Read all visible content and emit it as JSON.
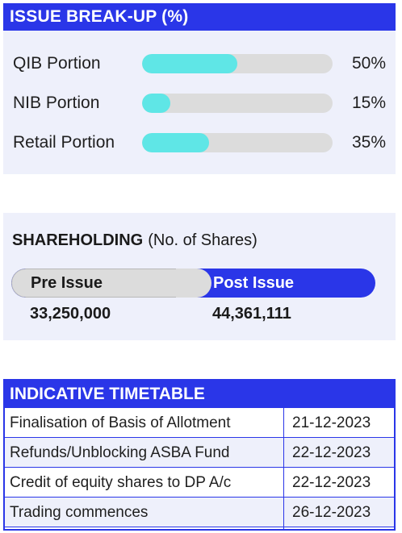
{
  "issue_breakup": {
    "title": "ISSUE BREAK-UP (%)",
    "rows": [
      {
        "label": "QIB Portion",
        "percent_text": "50%",
        "value": 50
      },
      {
        "label": "NIB Portion",
        "percent_text": "15%",
        "value": 15
      },
      {
        "label": "Retail Portion",
        "percent_text": "35%",
        "value": 35
      }
    ],
    "colors": {
      "header": "#2a36e8",
      "fill": "#5fe6e6",
      "track": "#dcdcdc"
    }
  },
  "shareholding": {
    "title": "SHAREHOLDING",
    "subtitle": "(No. of Shares)",
    "pre_label": "Pre Issue",
    "post_label": "Post Issue",
    "pre_value": "33,250,000",
    "post_value": "44,361,111"
  },
  "timetable": {
    "title": "INDICATIVE TIMETABLE",
    "rows": [
      {
        "event": "Finalisation of Basis of Allotment",
        "date": "21-12-2023"
      },
      {
        "event": "Refunds/Unblocking ASBA Fund",
        "date": "22-12-2023"
      },
      {
        "event": "Credit of equity shares to DP A/c",
        "date": "22-12-2023"
      },
      {
        "event": "Trading commences",
        "date": "26-12-2023"
      }
    ]
  }
}
